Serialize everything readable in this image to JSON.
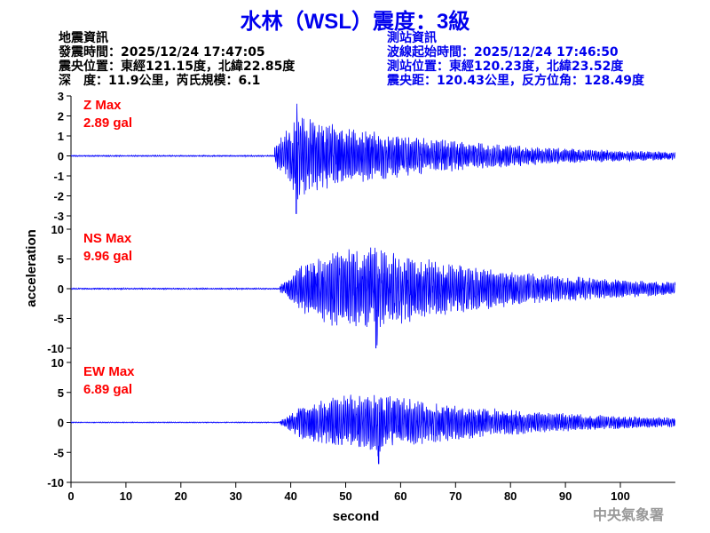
{
  "title": "水林（WSL）震度：3級",
  "event_info": {
    "heading": "地震資訊",
    "origin_time": "發震時間：2025/12/24 17:47:05",
    "epicenter": "震央位置：東經121.15度，北緯22.85度",
    "depth_magnitude": "深　度：11.9公里，芮氏規模：6.1"
  },
  "station_info": {
    "heading": "測站資訊",
    "wave_start": "波線起始時間：2025/12/24 17:46:50",
    "station_location": "測站位置：東經120.23度，北緯23.52度",
    "distance_azimuth": "震央距：120.43公里，反方位角：128.49度"
  },
  "watermark": "中央氣象署",
  "colors": {
    "title": "#0000ee",
    "trace": "#0000ff",
    "max_label": "#ff0000"
  },
  "chart_data": {
    "type": "line",
    "xlabel": "second",
    "ylabel": "acceleration",
    "xlim": [
      0,
      110
    ],
    "xticks": [
      0,
      10,
      20,
      30,
      40,
      50,
      60,
      70,
      80,
      90,
      100
    ],
    "grid": false,
    "panels": [
      {
        "component": "Z",
        "max_label": "Z Max",
        "max_value": "2.89 gal",
        "ylim": [
          -3,
          3
        ],
        "yticks": [
          3,
          2,
          1,
          0,
          -1,
          -2,
          -3
        ],
        "onset_s": 37,
        "peak_s": 41,
        "peak": 2.89
      },
      {
        "component": "NS",
        "max_label": "NS Max",
        "max_value": "9.96 gal",
        "ylim": [
          -10,
          10
        ],
        "yticks": [
          10,
          5,
          0,
          -5,
          -10
        ],
        "onset_s": 38,
        "peak_s": 55.5,
        "peak": 9.96
      },
      {
        "component": "EW",
        "max_label": "EW Max",
        "max_value": "6.89 gal",
        "ylim": [
          -10,
          10
        ],
        "yticks": [
          10,
          5,
          0,
          -5,
          -10
        ],
        "onset_s": 38,
        "peak_s": 56,
        "peak": 6.89
      }
    ]
  }
}
